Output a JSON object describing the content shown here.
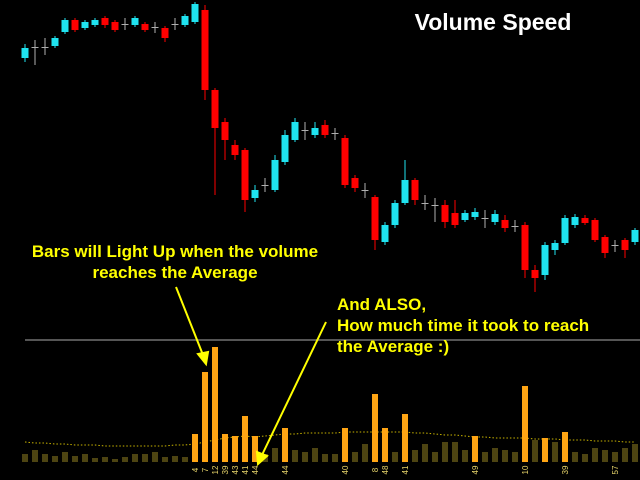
{
  "chart_data": {
    "type": "candlestick",
    "title": "Volume Speed",
    "annotations": [
      {
        "lines": [
          "Bars will Light Up when the volume",
          "reaches the Average"
        ]
      },
      {
        "lines": [
          "And ALSO,",
          "How much time it took to reach",
          "the Average  :)"
        ]
      }
    ],
    "open": [
      422,
      433,
      433,
      434,
      448,
      460,
      452,
      455,
      462,
      458,
      456,
      455,
      456,
      453,
      452,
      456,
      455,
      458,
      470,
      390,
      358,
      335,
      330,
      282,
      295,
      290,
      318,
      340,
      350,
      345,
      355,
      347,
      342,
      302,
      290,
      283,
      238,
      255,
      277,
      300,
      277,
      275,
      275,
      267,
      260,
      263,
      262,
      258,
      260,
      254,
      255,
      210,
      205,
      230,
      237,
      255,
      262,
      260,
      243,
      235,
      240,
      238
    ],
    "high": [
      436,
      440,
      442,
      444,
      462,
      462,
      460,
      462,
      464,
      460,
      462,
      464,
      458,
      458,
      454,
      462,
      466,
      478,
      475,
      392,
      362,
      340,
      332,
      295,
      302,
      325,
      350,
      362,
      358,
      358,
      360,
      352,
      345,
      305,
      297,
      285,
      258,
      280,
      320,
      302,
      285,
      282,
      280,
      280,
      270,
      272,
      270,
      270,
      265,
      260,
      258,
      215,
      238,
      240,
      265,
      266,
      265,
      262,
      245,
      240,
      242,
      252
    ],
    "low": [
      418,
      415,
      425,
      432,
      446,
      448,
      450,
      453,
      452,
      448,
      450,
      453,
      448,
      447,
      438,
      450,
      453,
      456,
      380,
      285,
      320,
      320,
      268,
      278,
      288,
      288,
      315,
      338,
      340,
      342,
      342,
      340,
      292,
      288,
      282,
      230,
      235,
      252,
      275,
      275,
      270,
      258,
      252,
      252,
      258,
      260,
      252,
      255,
      248,
      248,
      202,
      188,
      200,
      225,
      235,
      252,
      255,
      238,
      222,
      228,
      222,
      235
    ],
    "close": [
      432,
      433,
      433,
      442,
      460,
      450,
      458,
      460,
      455,
      450,
      456,
      462,
      450,
      453,
      442,
      456,
      464,
      476,
      390,
      352,
      340,
      325,
      280,
      290,
      295,
      320,
      345,
      358,
      350,
      352,
      345,
      347,
      295,
      292,
      290,
      240,
      255,
      277,
      300,
      280,
      277,
      275,
      258,
      255,
      267,
      268,
      262,
      266,
      252,
      254,
      210,
      202,
      235,
      237,
      262,
      263,
      257,
      240,
      227,
      235,
      230,
      250
    ],
    "up_color": "#1fe3f0",
    "down_color": "#ff0000",
    "doji_color": "#b0b0b0",
    "ylim": [
      0,
      480
    ],
    "volume": {
      "values": [
        8,
        12,
        8,
        6,
        10,
        6,
        8,
        4,
        5,
        3,
        5,
        8,
        8,
        10,
        5,
        6,
        5,
        28,
        90,
        115,
        28,
        26,
        46,
        26,
        8,
        14,
        34,
        12,
        10,
        14,
        8,
        8,
        34,
        10,
        18,
        68,
        34,
        10,
        48,
        12,
        18,
        10,
        20,
        20,
        12,
        26,
        10,
        14,
        12,
        10,
        76,
        22,
        24,
        20,
        30,
        10,
        8,
        14,
        12,
        10,
        14,
        18
      ],
      "average": [
        20,
        19,
        19,
        18,
        18,
        17,
        17,
        17,
        16,
        16,
        16,
        16,
        16,
        16,
        16,
        17,
        17,
        18,
        20,
        22,
        24,
        25,
        26,
        25,
        26,
        27,
        28,
        28,
        29,
        29,
        29,
        29,
        30,
        30,
        30,
        30,
        30,
        30,
        30,
        29,
        29,
        28,
        27,
        27,
        26,
        25,
        25,
        24,
        24,
        24,
        24,
        23,
        23,
        23,
        22,
        22,
        22,
        21,
        21,
        21,
        20,
        20
      ],
      "time_labels": [
        null,
        null,
        null,
        null,
        null,
        null,
        null,
        null,
        null,
        null,
        null,
        null,
        null,
        null,
        null,
        null,
        null,
        4,
        7,
        12,
        39,
        43,
        41,
        44,
        null,
        null,
        44,
        null,
        null,
        null,
        null,
        null,
        40,
        null,
        null,
        8,
        48,
        null,
        41,
        null,
        null,
        null,
        null,
        null,
        null,
        49,
        null,
        null,
        null,
        null,
        10,
        null,
        null,
        null,
        39,
        null,
        null,
        null,
        null,
        57,
        null,
        null
      ],
      "color": "#4d4412",
      "highlight_color": "#ffa514",
      "average_color": "#c9b400",
      "label_color": "#e6d36a",
      "y2lim": [
        0,
        120
      ]
    }
  }
}
